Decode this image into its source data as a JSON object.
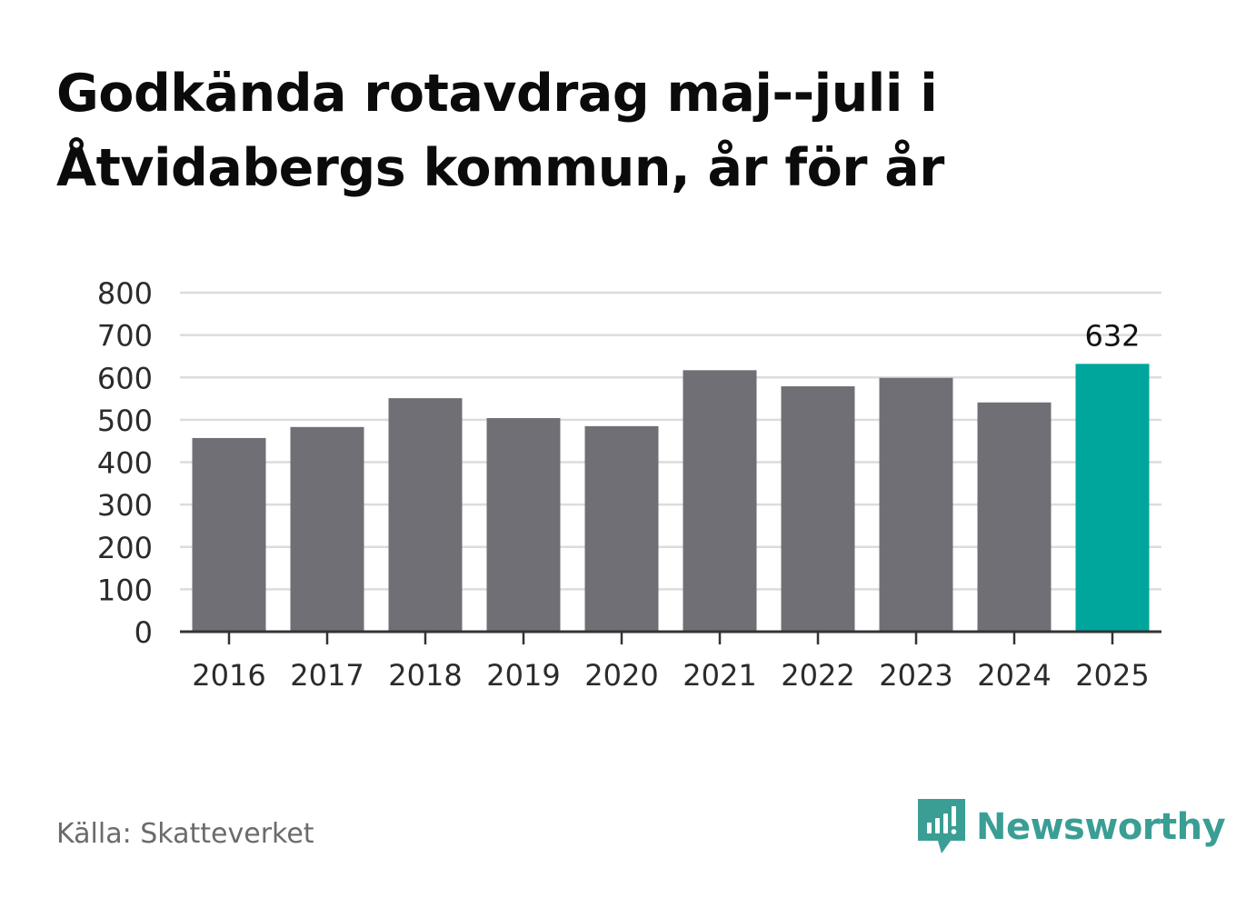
{
  "chart_data": {
    "type": "bar",
    "title": [
      "Godkända rotavdrag maj--juli i",
      "Åtvidabergs kommun, år för år"
    ],
    "categories": [
      "2016",
      "2017",
      "2018",
      "2019",
      "2020",
      "2021",
      "2022",
      "2023",
      "2024",
      "2025"
    ],
    "values": [
      457,
      483,
      551,
      504,
      485,
      617,
      579,
      599,
      541,
      632
    ],
    "yticks": [
      "0",
      "100",
      "200",
      "300",
      "400",
      "500",
      "600",
      "700",
      "800"
    ],
    "ylim": [
      0,
      800
    ],
    "grid": true,
    "highlight_index": 9,
    "highlight_label": "632",
    "colors": {
      "bar": "#706f75",
      "highlight": "#00a59b",
      "grid": "#dcdcdc",
      "axis": "#333333"
    }
  },
  "source": "Källa: Skatteverket",
  "brand": {
    "name": "Newsworthy",
    "icon": "newsworthy-logo-icon",
    "color": "#3a9e95"
  }
}
